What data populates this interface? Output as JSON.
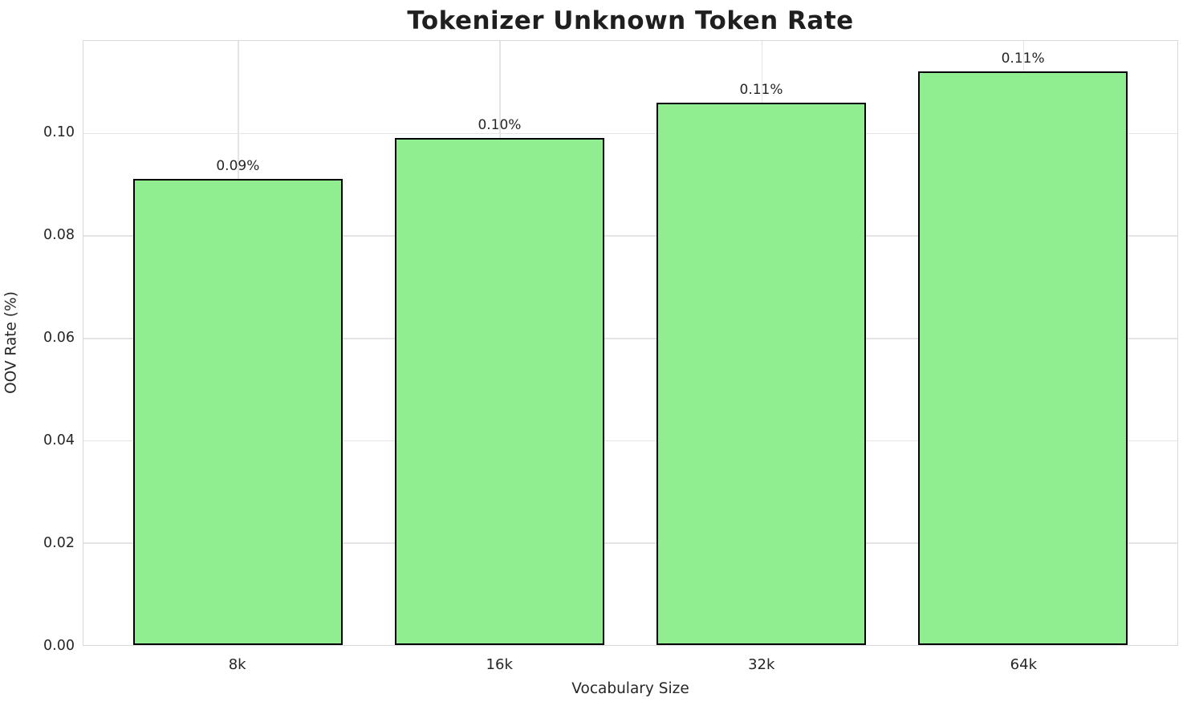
{
  "title": "Tokenizer Unknown Token Rate",
  "chart_data": {
    "type": "bar",
    "title": "Tokenizer Unknown Token Rate",
    "xlabel": "Vocabulary Size",
    "ylabel": "OOV Rate (%)",
    "categories": [
      "8k",
      "16k",
      "32k",
      "64k"
    ],
    "values": [
      0.091,
      0.099,
      0.106,
      0.112
    ],
    "bar_labels": [
      "0.09%",
      "0.10%",
      "0.11%",
      "0.11%"
    ],
    "ylim": [
      0,
      0.118
    ],
    "yticks": [
      0.0,
      0.02,
      0.04,
      0.06,
      0.08,
      0.1
    ],
    "ytick_labels": [
      "0.00",
      "0.02",
      "0.04",
      "0.06",
      "0.08",
      "0.10"
    ],
    "grid": "both",
    "legend_position": "none",
    "bar_width_fraction": 0.8,
    "x_margin_fraction": 0.19,
    "bar_color": "#90EE90",
    "bar_edge_color": "#000000"
  },
  "colors": {
    "background": "#FFFFFF",
    "bar_fill": "#90EE90",
    "bar_edge": "#000000",
    "grid": "#E4E4E4",
    "spine": "#D9D9D9",
    "text": "#262626",
    "title_text": "#1F1F1F"
  }
}
